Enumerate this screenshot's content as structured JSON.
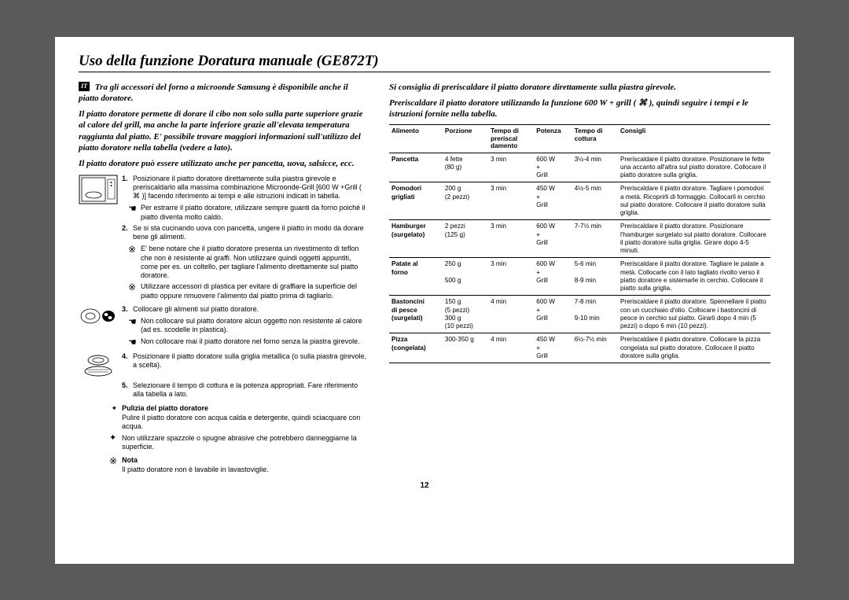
{
  "lang_badge": "IT",
  "title": "Uso della funzione Doratura manuale (GE872T)",
  "intro1": "Tra gli accessori del forno a microonde Samsung è disponibile anche il piatto doratore.",
  "intro2": "Il piatto doratore permette di dorare il cibo non solo sulla parte superiore grazie al calore del grill, ma anche la parte inferiore grazie all'elevata temperatura raggiunta dal piatto. E' possibile trovare maggiori informazioni sull'utilizzo del piatto doratore nella tabella (vedere a lato).",
  "intro3": "Il piatto doratore può essere utilizzato anche per pancetta, uova, salsicce, ecc.",
  "steps": [
    {
      "num": "1.",
      "text": "Posizionare il piatto doratore direttamente sulla piastra girevole e preriscaldarlo alla massima combinazione Microonde-Grill [600 W +Grill ( ⌘ )] facendo riferimento ai tempi e alle istruzioni indicati in tabella."
    },
    {
      "bullet": "hand",
      "text": "Per estrarre il piatto doratore, utilizzare sempre guanti da forno poiché il piatto diventa molto caldo."
    },
    {
      "num": "2.",
      "text": "Se si sta cucinando uova con pancetta, ungere il piatto in modo da dorare bene gli alimenti."
    },
    {
      "bullet": "warn",
      "text": "E' bene notare che il piatto doratore presenta un rivestimento di teflon che non è resistente ai graffi. Non utilizzare quindi oggetti appuntiti, come per es. un coltello, per tagliare l'alimento direttamente sul piatto doratore."
    },
    {
      "bullet": "warn",
      "text": "Utilizzare accessori di plastica per evitare di graffiare la superficie del piatto oppure rimuovere l'alimento dal piatto prima di tagliarlo."
    },
    {
      "num": "3.",
      "text": "Collocare gli alimenti sul piatto doratore."
    },
    {
      "bullet": "hand",
      "text": "Non collocare sul piatto doratore alcun oggetto non resistente al calore (ad es. scodelle in plastica)."
    },
    {
      "bullet": "hand",
      "text": "Non collocare mai il piatto doratore nel forno senza la piastra girevole."
    },
    {
      "num": "4.",
      "text": "Posizionare il piatto doratore sulla griglia metallica (o sulla piastra girevole, a scelta)."
    },
    {
      "num": "5.",
      "text": "Selezionare il tempo di cottura e la potenza appropriati. Fare riferimento alla tabella a lato."
    }
  ],
  "clean_head": "Pulizia del piatto doratore",
  "clean_text": "Pulire il piatto doratore con acqua calda e detergente, quindi sciacquare con acqua.",
  "clean_warn": "Non utilizzare spazzole o spugne abrasive che potrebbero danneggiarne la superficie.",
  "nota_head": "Nota",
  "nota_text": "Il piatto doratore non è lavabile in lavastoviglie.",
  "right_intro1": "Si consiglia di preriscaldare il piatto doratore direttamente sulla piastra girevole.",
  "right_intro2": "Preriscaldare il piatto doratore utilizzando la funzione 600 W + grill ( ⌘ ), quindi seguire i tempi e le istruzioni fornite nella tabella.",
  "table": {
    "headers": [
      "Alimento",
      "Porzione",
      "Tempo di preriscal damento",
      "Potenza",
      "Tempo di cottura",
      "Consigli"
    ],
    "rows": [
      {
        "food": "Pancetta",
        "por": "4 fette\n(80 g)",
        "pre": "3 min",
        "pow": "600 W\n+\nGrill",
        "cook": "3½-4 min",
        "tip": "Preriscaldare il piatto doratore. Posizionare le fette una accanto all'altra sul piatto doratore. Collocare il piatto doratore sulla griglia."
      },
      {
        "food": "Pomodori\ngrigliati",
        "por": "200 g\n(2 pezzi)",
        "pre": "3 min",
        "pow": "450 W\n+\nGrill",
        "cook": "4½-5 min",
        "tip": "Preriscaldare il piatto doratore. Tagliare i pomodori a metà. Ricoprirli di formaggio. Collocarli in cerchio sul piatto doratore. Collocare il piatto doratore sulla griglia."
      },
      {
        "food": "Hamburger\n(surgelato)",
        "por": "2 pezzi\n(125 g)",
        "pre": "3 min",
        "pow": "600 W\n+\nGrill",
        "cook": "7-7½ min",
        "tip": "Preriscaldare il piatto doratore. Posizionare l'hamburger surgelato sul piatto doratore. Collocare il piatto doratore sulla griglia. Girare dopo 4-5 minuti."
      },
      {
        "food": "Patate al\nforno",
        "por": "250 g\n\n500 g",
        "pre": "3 min",
        "pow": "600 W\n+\nGrill",
        "cook": "5-6 min\n\n8-9 min",
        "tip": "Preriscaldare il piatto doratore. Tagliare le patate a metà. Collocarle con il lato tagliato rivolto verso il piatto doratore e sistemarle in cerchio. Collocare il piatto sulla griglia."
      },
      {
        "food": "Bastoncini\ndi pesce\n(surgelati)",
        "por": "150 g\n(5 pezzi)\n300 g\n(10 pezzi)",
        "pre": "4 min",
        "pow": "600 W\n+\nGrill",
        "cook": "7-8 min\n\n9-10 min",
        "tip": "Preriscaldare il piatto doratore. Spennellare il piatto con un cucchiaio d'olio. Collocare i bastoncini di pesce in cerchio sul piatto. Girarli dopo 4 min (5 pezzi) o dopo 6 min (10 pezzi)."
      },
      {
        "food": "Pizza\n(congelata)",
        "por": "300-350 g",
        "pre": "4 min",
        "pow": "450 W\n+\nGrill",
        "cook": "6½-7½ min",
        "tip": "Preriscaldare il piatto doratore. Collocare la pizza congelata sul piatto doratore. Collocare il piatto doratore sulla griglia."
      }
    ]
  },
  "page_number": "12"
}
